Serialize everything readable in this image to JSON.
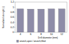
{
  "chart_data": {
    "type": "bar",
    "y_label": "Normalized strength (-)",
    "x_label": "Drill diameter (mm)",
    "categories": [
      "4",
      "6",
      "8",
      "10",
      "12"
    ],
    "series": [
      {
        "name": "σnotch,open / σnotch,filled",
        "color": "#8e8ca8",
        "values": [
          0.93,
          0.92,
          0.92,
          0.93,
          0.93
        ]
      }
    ],
    "ylim": [
      0,
      1.2
    ],
    "yticks": [
      0,
      0.2,
      0.4,
      0.6,
      0.8,
      1,
      1.2
    ],
    "grid": false,
    "legend": "bottom"
  }
}
